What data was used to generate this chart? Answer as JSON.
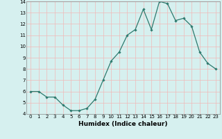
{
  "x": [
    0,
    1,
    2,
    3,
    4,
    5,
    6,
    7,
    8,
    9,
    10,
    11,
    12,
    13,
    14,
    15,
    16,
    17,
    18,
    19,
    20,
    21,
    22,
    23
  ],
  "y": [
    6.0,
    6.0,
    5.5,
    5.5,
    4.8,
    4.3,
    4.3,
    4.5,
    5.3,
    7.0,
    8.7,
    9.5,
    11.0,
    11.5,
    13.3,
    11.5,
    14.0,
    13.8,
    12.3,
    12.5,
    11.8,
    9.5,
    8.5,
    8.0
  ],
  "line_color": "#2d7a6e",
  "marker": "D",
  "marker_size": 1.8,
  "line_width": 0.9,
  "bg_color": "#d6f0ef",
  "grid_color": "#f0b8b8",
  "xlabel": "Humidex (Indice chaleur)",
  "ylabel": "",
  "ylim": [
    4,
    14
  ],
  "xlim": [
    -0.5,
    23.5
  ],
  "yticks": [
    4,
    5,
    6,
    7,
    8,
    9,
    10,
    11,
    12,
    13,
    14
  ],
  "xticks": [
    0,
    1,
    2,
    3,
    4,
    5,
    6,
    7,
    8,
    9,
    10,
    11,
    12,
    13,
    14,
    15,
    16,
    17,
    18,
    19,
    20,
    21,
    22,
    23
  ],
  "tick_label_fontsize": 5.0,
  "xlabel_fontsize": 6.5,
  "xlabel_bold": true
}
